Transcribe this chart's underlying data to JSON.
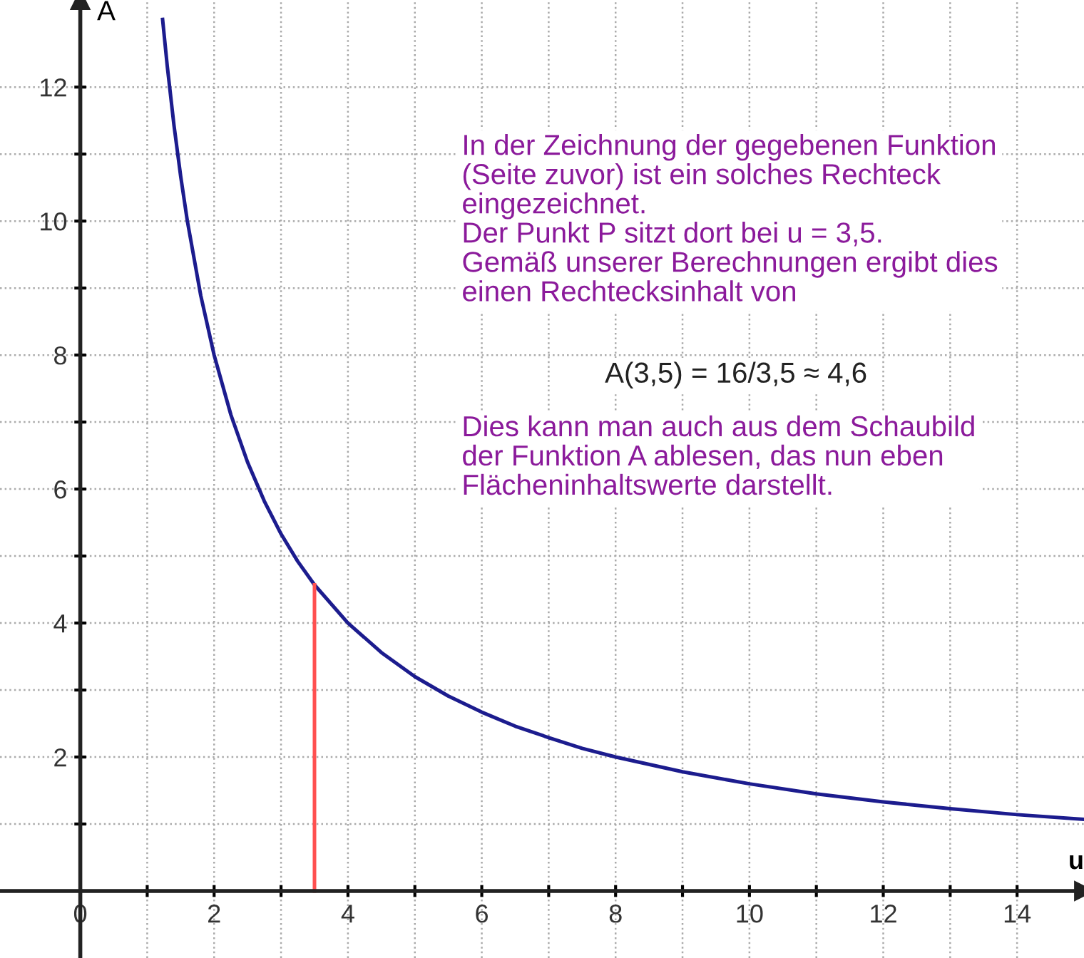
{
  "chart_data": {
    "type": "line",
    "xlabel": "u",
    "ylabel": "A",
    "xlim": [
      -1.2,
      15
    ],
    "ylim": [
      -1,
      13.3
    ],
    "xticks": [
      0,
      {
        "value": 1,
        "label": null
      },
      2,
      {
        "value": 3,
        "label": null
      },
      4,
      {
        "value": 5,
        "label": null
      },
      6,
      {
        "value": 7,
        "label": null
      },
      8,
      {
        "value": 9,
        "label": null
      },
      10,
      {
        "value": 11,
        "label": null
      },
      12,
      {
        "value": 13,
        "label": null
      },
      14
    ],
    "yticks": [
      {
        "value": 1,
        "label": null
      },
      2,
      {
        "value": 3,
        "label": null
      },
      4,
      {
        "value": 5,
        "label": null
      },
      6,
      {
        "value": 7,
        "label": null
      },
      8,
      {
        "value": 9,
        "label": null
      },
      10,
      {
        "value": 11,
        "label": null
      },
      12
    ],
    "grid": true,
    "marker": "none",
    "line_style": "solid",
    "series": [
      {
        "color": "#1c1c8e",
        "x": [
          1.23,
          1.3,
          1.4,
          1.5,
          1.6,
          1.8,
          2,
          2.25,
          2.5,
          2.75,
          3,
          3.25,
          3.5,
          4,
          4.5,
          5,
          5.5,
          6,
          6.5,
          7,
          7.5,
          8,
          9,
          10,
          11,
          12,
          13,
          14,
          15
        ],
        "values": [
          13.01,
          12.31,
          11.43,
          10.67,
          10,
          8.89,
          8,
          7.11,
          6.4,
          5.82,
          5.33,
          4.92,
          4.57,
          4,
          3.56,
          3.2,
          2.91,
          2.67,
          2.46,
          2.29,
          2.13,
          2,
          1.78,
          1.6,
          1.45,
          1.33,
          1.23,
          1.14,
          1.07
        ]
      },
      {
        "color": "#ff5050",
        "x": [
          3.5,
          3.5
        ],
        "values": [
          0,
          4.57
        ]
      }
    ],
    "annotations": [
      "In der Zeichnung der gegebenen Funktion\n(Seite zuvor) ist ein solches Rechteck\neingezeichnet.\nDer Punkt P sitzt dort bei u = 3,5.\nGemäß unserer Berechnungen ergibt dies\neinen Rechtecksinhalt von",
      "A(3,5) = 16/3,5 ≈ 4,6",
      "Dies kann man auch aus dem Schaubild\nder Funktion A ablesen, das nun eben\nFlächeninhaltswerte darstellt."
    ]
  }
}
